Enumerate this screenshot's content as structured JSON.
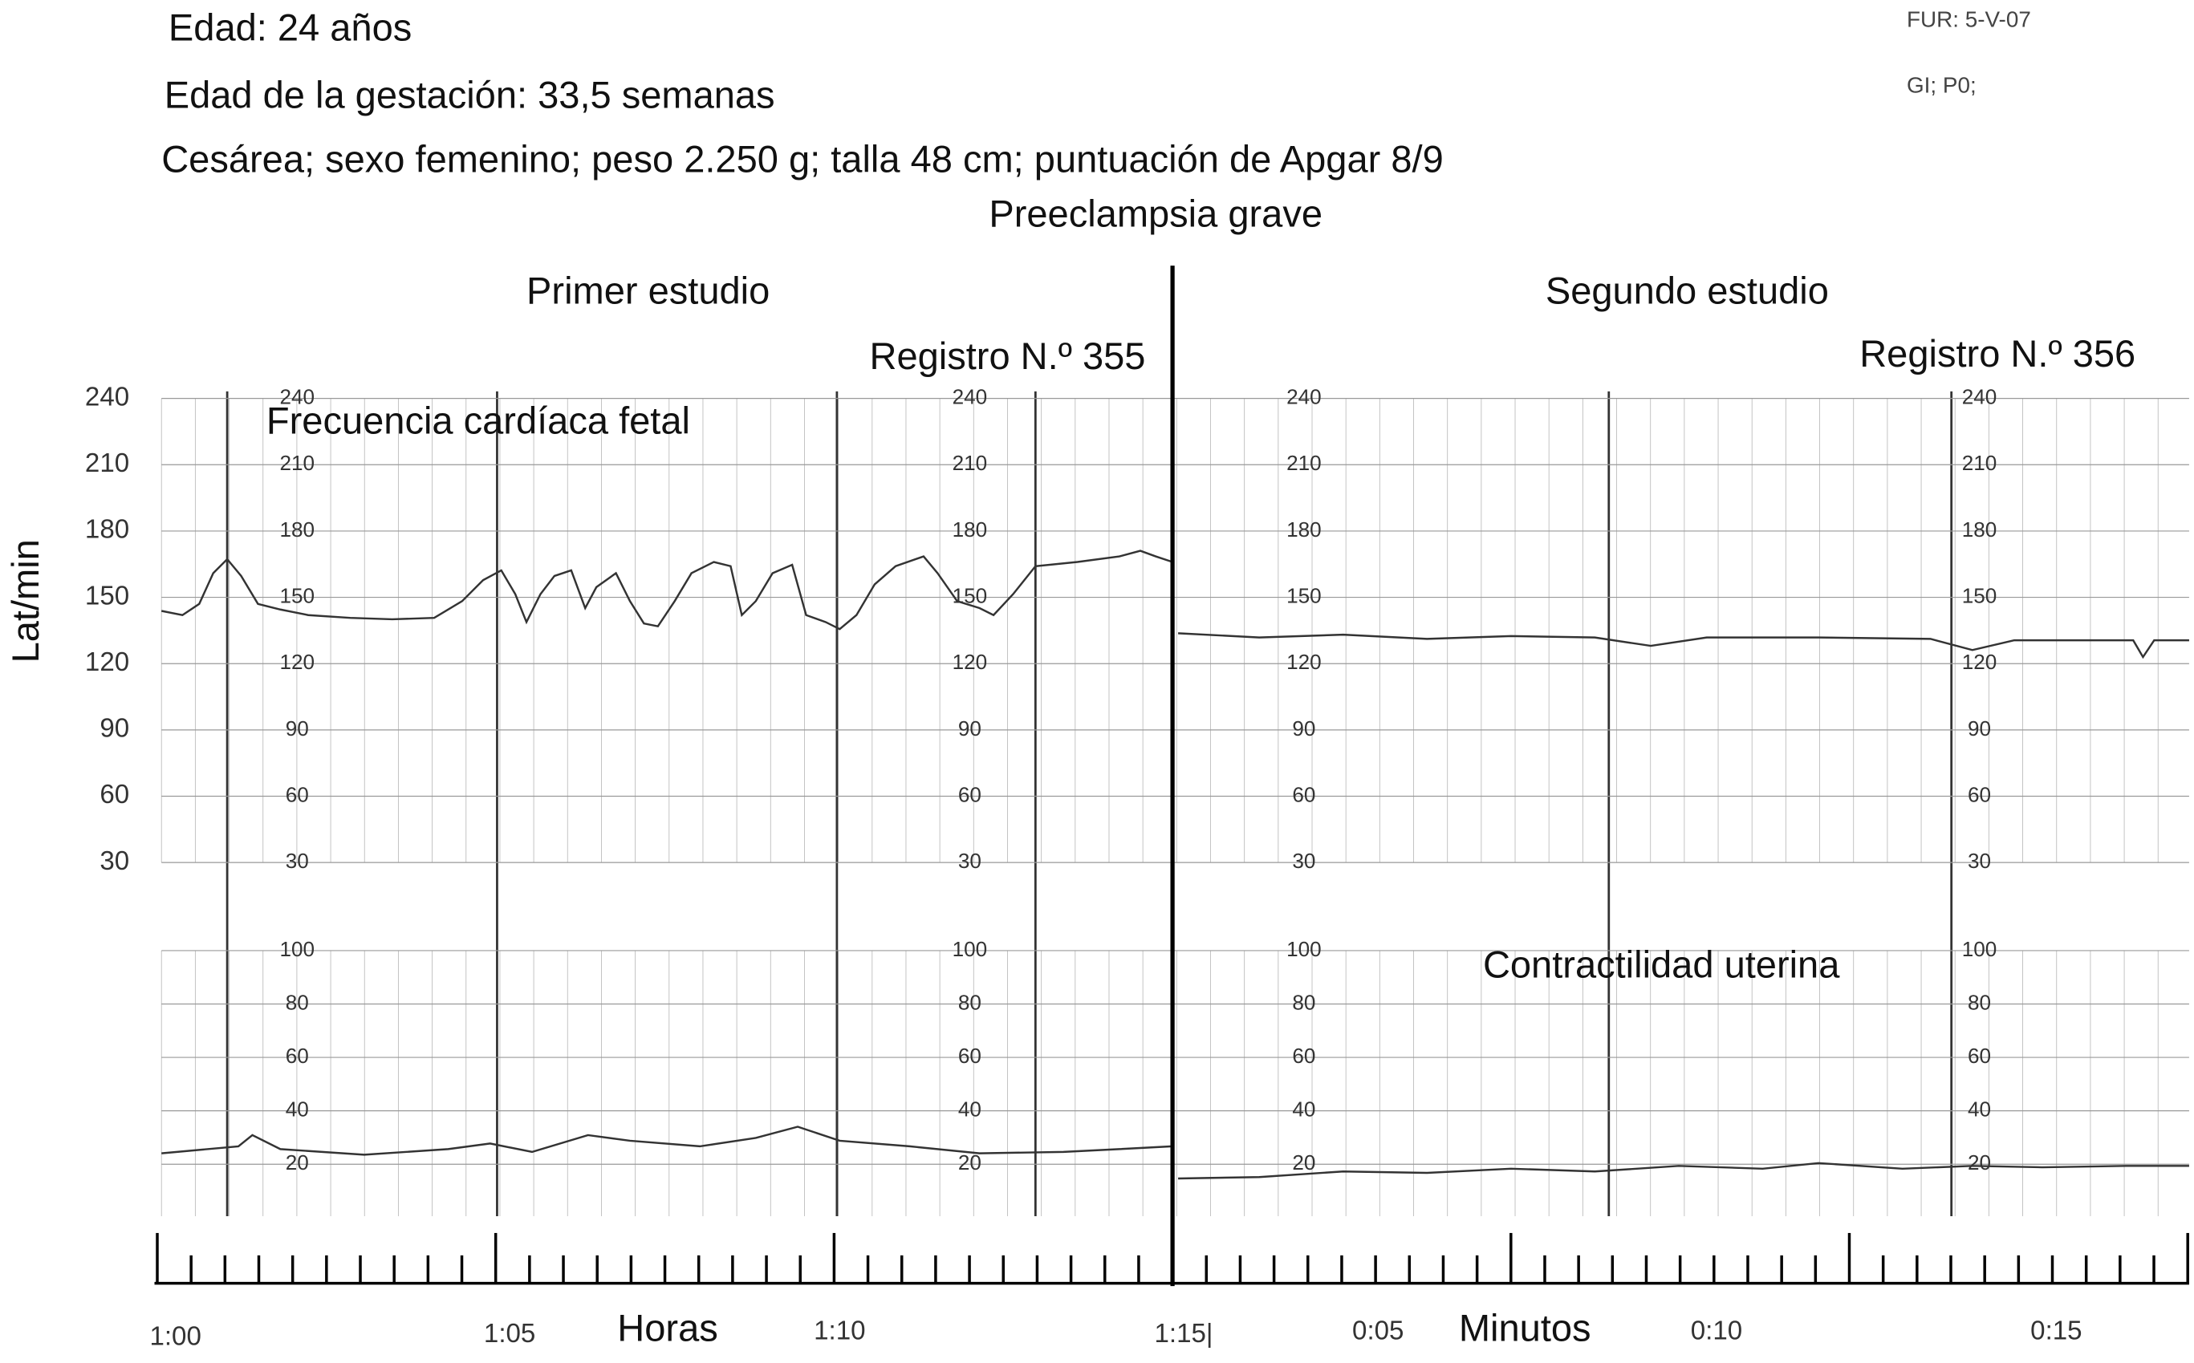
{
  "header": {
    "age": "Edad: 24 años",
    "gestation": "Edad de la gestación: 33,5 semanas",
    "delivery": "Cesárea; sexo femenino; peso 2.250 g; talla 48 cm; puntuación de Apgar 8/9",
    "diagnosis": "Preeclampsia grave",
    "fur": "FUR: 5-V-07",
    "obstetric": "GI; P0;"
  },
  "studies": [
    {
      "title": "Primer estudio",
      "record": "Registro N.º 355"
    },
    {
      "title": "Segundo estudio",
      "record": "Registro N.º 356"
    }
  ],
  "heart_rate": {
    "label": "Frecuencia cardíaca fetal",
    "axis_label": "Lat/min",
    "ylim": [
      30,
      240
    ],
    "yticks": [
      240,
      210,
      180,
      150,
      120,
      90,
      60,
      30
    ]
  },
  "contraction": {
    "label": "Contractilidad uterina",
    "ylim": [
      0,
      100
    ],
    "yticks": [
      100,
      80,
      60,
      40,
      20
    ]
  },
  "time": {
    "first_axis_label": "Horas",
    "second_axis_label": "Minutos",
    "first_labels": [
      "1:00",
      "1:05",
      "1:10",
      "1:15|"
    ],
    "second_labels": [
      "0:05",
      "0:10",
      "0:15"
    ]
  }
}
